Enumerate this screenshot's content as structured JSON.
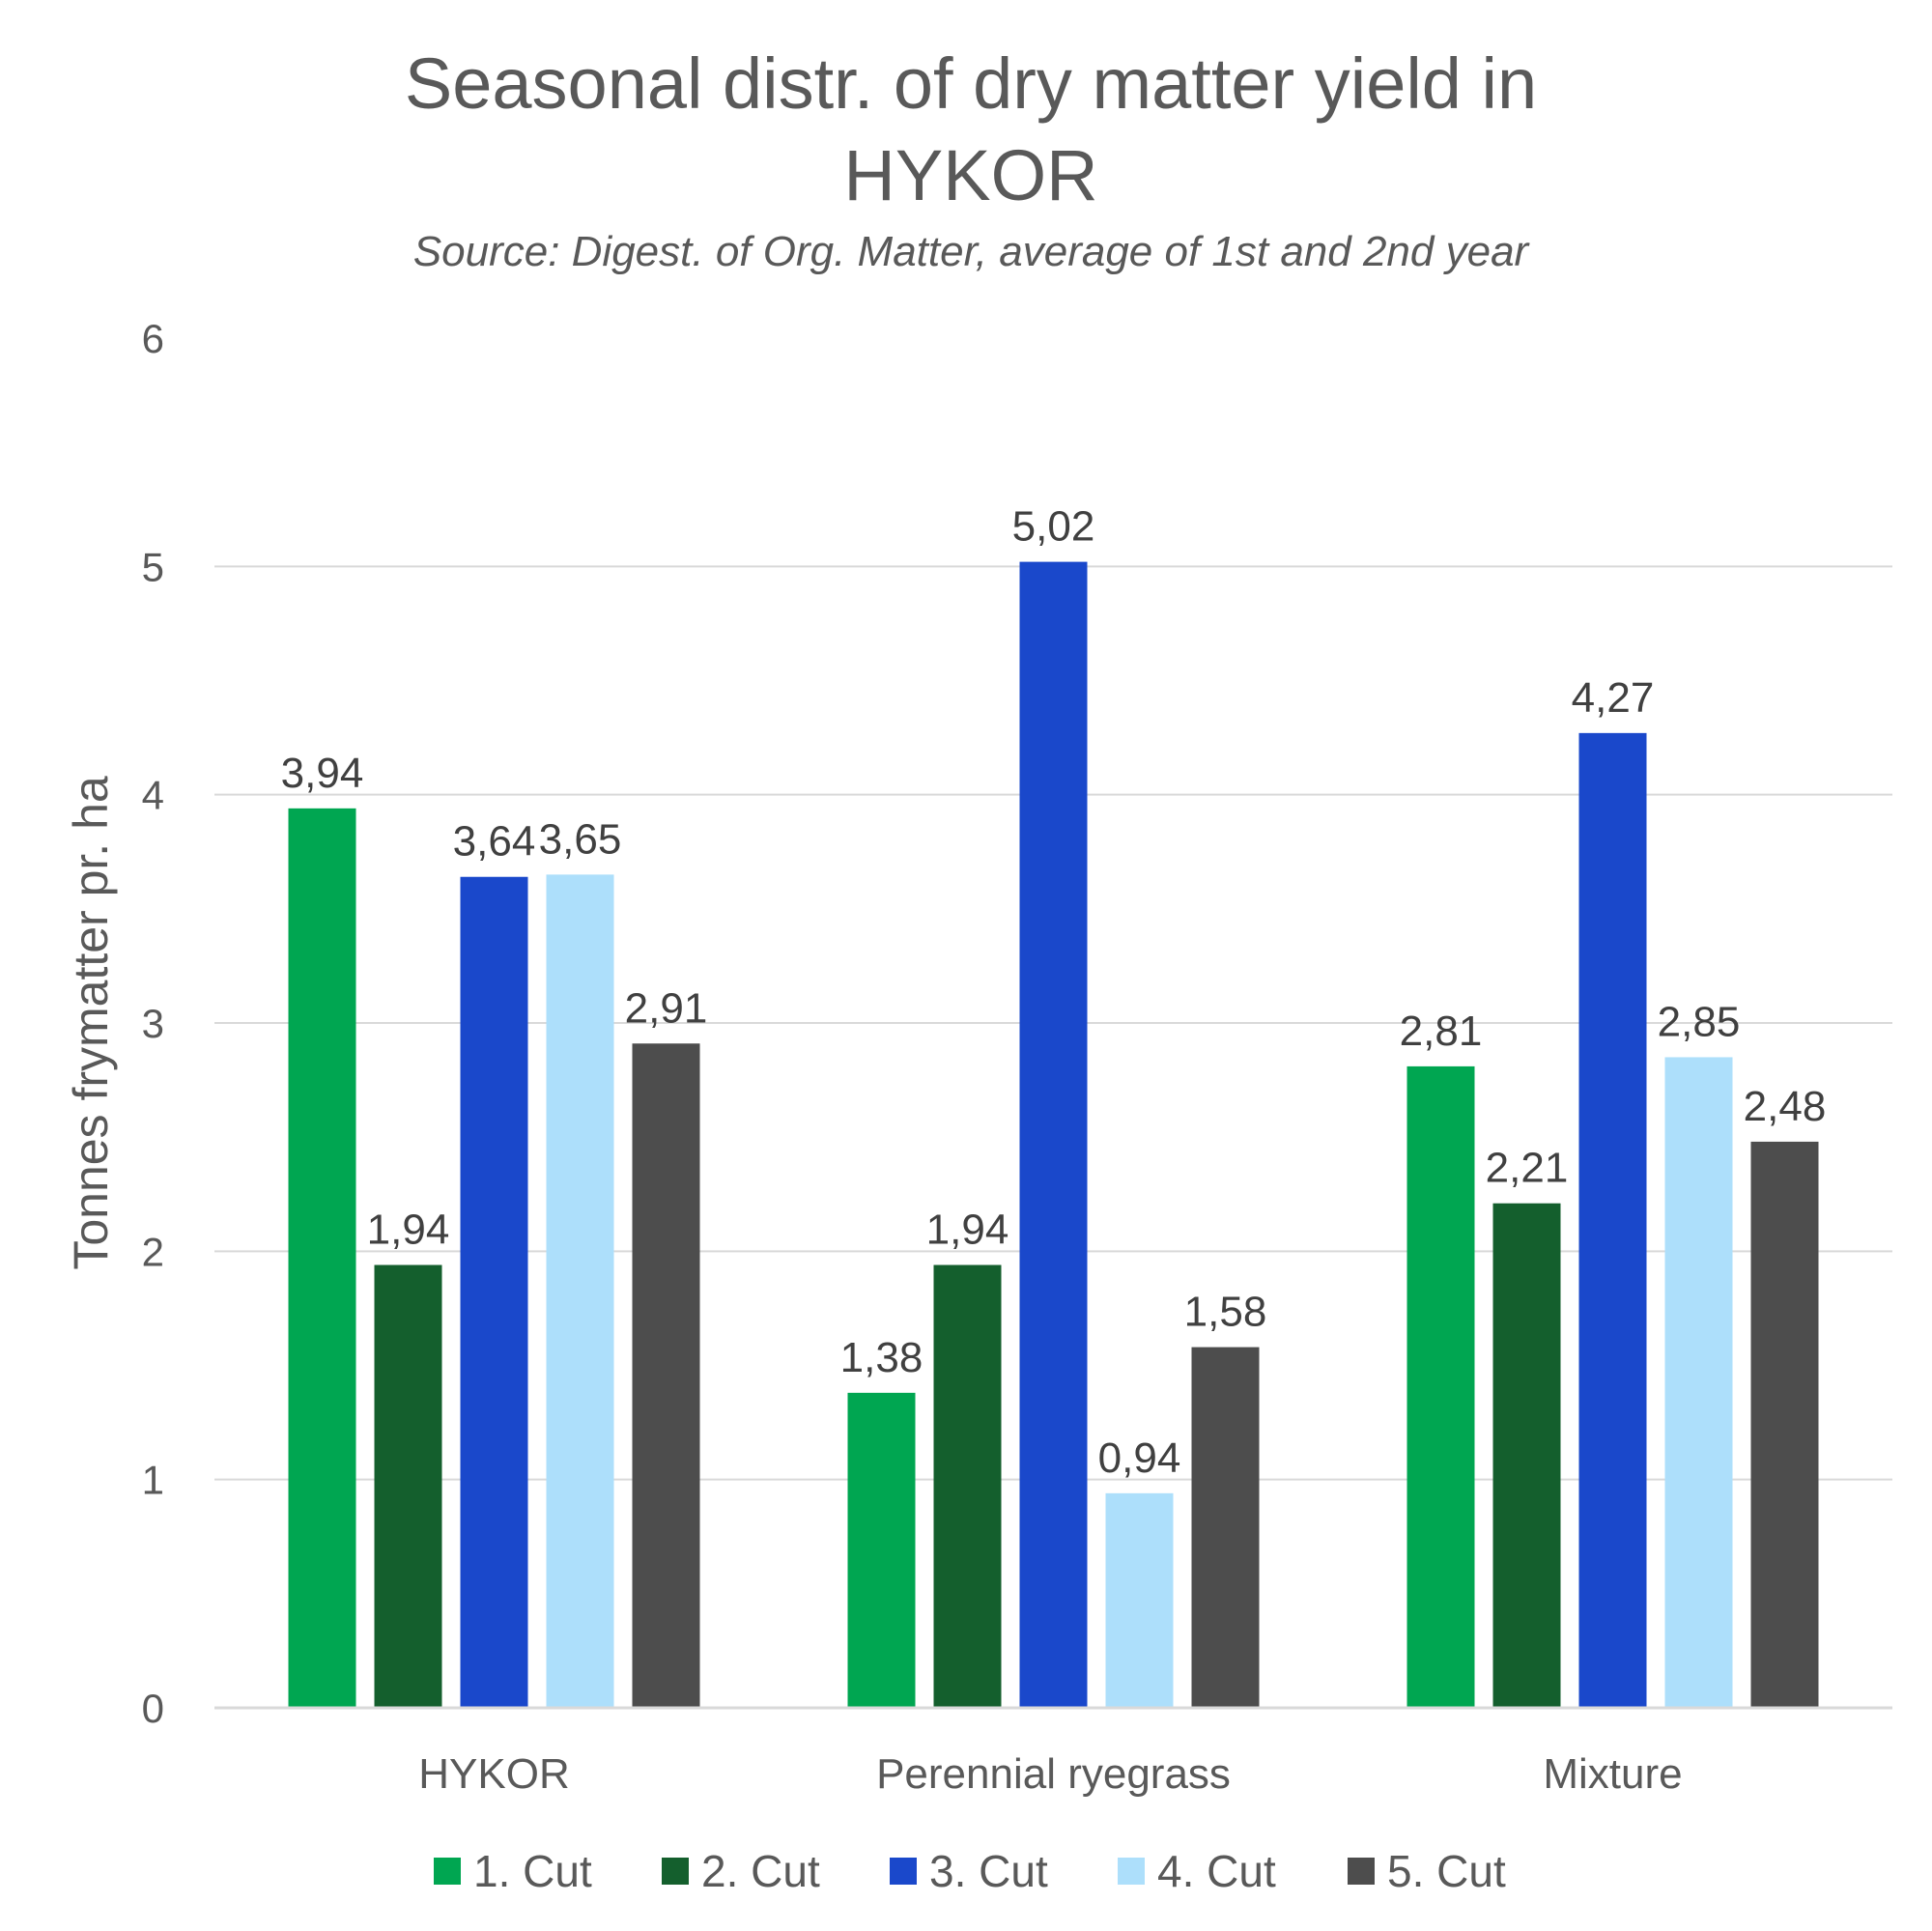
{
  "chart_data": {
    "type": "bar",
    "title_lines": [
      "Seasonal distr. of dry matter yield in",
      "HYKOR"
    ],
    "subtitle": "Source: Digest. of Org. Matter, average of 1st and 2nd year",
    "xlabel": "",
    "ylabel": "Tonnes frymatter pr. ha",
    "ylim": [
      0,
      6
    ],
    "yticks": [
      "0",
      "1",
      "2",
      "3",
      "4",
      "5",
      "6"
    ],
    "grid": true,
    "legend_position": "bottom",
    "categories": [
      "HYKOR",
      "Perennial ryegrass",
      "Mixture"
    ],
    "series": [
      {
        "name": "1. Cut",
        "color": "#00a651",
        "values": [
          3.94,
          1.38,
          2.81
        ],
        "labels": [
          "3,94",
          "1,38",
          "2,81"
        ]
      },
      {
        "name": "2. Cut",
        "color": "#145f2d",
        "values": [
          1.94,
          1.94,
          2.21
        ],
        "labels": [
          "1,94",
          "1,94",
          "2,21"
        ]
      },
      {
        "name": "3. Cut",
        "color": "#1a48cb",
        "values": [
          3.64,
          5.02,
          4.27
        ],
        "labels": [
          "3,64",
          "5,02",
          "4,27"
        ]
      },
      {
        "name": "4. Cut",
        "color": "#addffb",
        "values": [
          3.65,
          0.94,
          2.85
        ],
        "labels": [
          "3,65",
          "0,94",
          "2,85"
        ]
      },
      {
        "name": "5. Cut",
        "color": "#4d4d4d",
        "values": [
          2.91,
          1.58,
          2.48
        ],
        "labels": [
          "2,91",
          "1,58",
          "2,48"
        ]
      }
    ]
  }
}
